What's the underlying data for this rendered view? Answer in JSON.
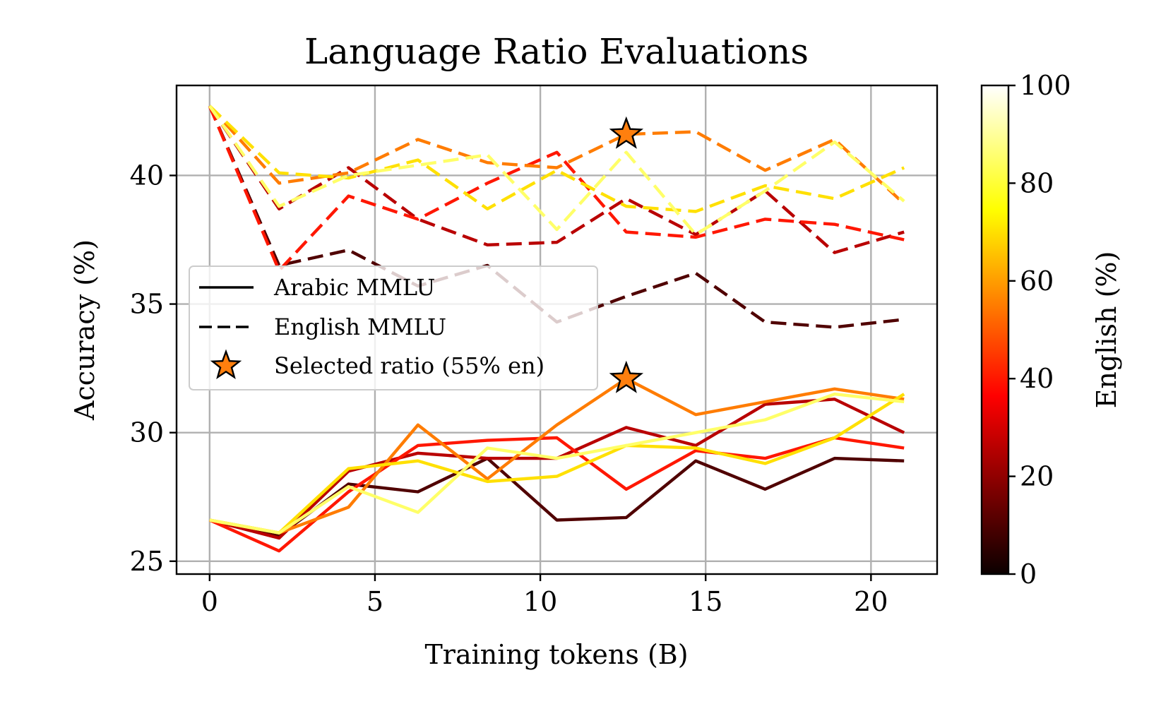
{
  "chart_data": {
    "type": "line",
    "title": "Language Ratio Evaluations",
    "xlabel": "Training tokens (B)",
    "ylabel": "Accuracy (%)",
    "xlim": [
      -1,
      22
    ],
    "ylim": [
      24.5,
      43.5
    ],
    "xticks": [
      0,
      5,
      10,
      15,
      20
    ],
    "yticks": [
      25,
      30,
      35,
      40
    ],
    "grid": true,
    "legend_position": "center-left",
    "legend": [
      {
        "label": "Arabic MMLU",
        "style": "solid"
      },
      {
        "label": "English MMLU",
        "style": "dashed"
      },
      {
        "label": "Selected ratio (55% en)",
        "style": "star",
        "color": "#ff7f0e"
      }
    ],
    "colorbar": {
      "label": "English (%)",
      "ticks": [
        0,
        20,
        40,
        60,
        80,
        100
      ],
      "colormap": "hot"
    },
    "x": [
      0,
      2.1,
      4.2,
      6.3,
      8.4,
      10.5,
      12.6,
      14.7,
      16.8,
      18.9,
      21
    ],
    "series": [
      {
        "metric": "Arabic MMLU",
        "english_pct": 10,
        "values": [
          26.6,
          26.0,
          28.0,
          27.7,
          29.0,
          26.6,
          26.7,
          28.9,
          27.8,
          29.0,
          28.9
        ]
      },
      {
        "metric": "Arabic MMLU",
        "english_pct": 25,
        "values": [
          26.6,
          25.9,
          28.5,
          29.2,
          29.0,
          29.0,
          30.2,
          29.5,
          31.1,
          31.3,
          30.0
        ]
      },
      {
        "metric": "Arabic MMLU",
        "english_pct": 40,
        "values": [
          26.6,
          25.4,
          27.7,
          29.5,
          29.7,
          29.8,
          27.8,
          29.3,
          29.0,
          29.8,
          29.4
        ]
      },
      {
        "metric": "Arabic MMLU",
        "english_pct": 55,
        "values": [
          26.6,
          26.1,
          27.1,
          30.3,
          28.2,
          30.3,
          32.1,
          30.7,
          31.2,
          31.7,
          31.3
        ]
      },
      {
        "metric": "Arabic MMLU",
        "english_pct": 70,
        "values": [
          26.6,
          26.1,
          28.6,
          28.9,
          28.1,
          28.3,
          29.5,
          29.4,
          28.8,
          29.8,
          31.5
        ]
      },
      {
        "metric": "Arabic MMLU",
        "english_pct": 85,
        "values": [
          26.6,
          26.1,
          27.9,
          26.9,
          29.4,
          29.0,
          29.5,
          30.0,
          30.5,
          31.5,
          31.2
        ]
      },
      {
        "metric": "English MMLU",
        "english_pct": 10,
        "values": [
          42.7,
          36.5,
          37.1,
          35.7,
          36.5,
          34.3,
          35.3,
          36.2,
          34.3,
          34.1,
          34.4
        ]
      },
      {
        "metric": "English MMLU",
        "english_pct": 25,
        "values": [
          42.7,
          38.7,
          40.3,
          38.3,
          37.3,
          37.4,
          39.1,
          37.7,
          39.4,
          37.0,
          37.8
        ]
      },
      {
        "metric": "English MMLU",
        "english_pct": 40,
        "values": [
          42.7,
          36.3,
          39.2,
          38.3,
          39.7,
          40.9,
          37.8,
          37.6,
          38.3,
          38.1,
          37.5
        ]
      },
      {
        "metric": "English MMLU",
        "english_pct": 55,
        "values": [
          42.7,
          39.7,
          40.1,
          41.4,
          40.5,
          40.3,
          41.6,
          41.7,
          40.2,
          41.4,
          38.9
        ]
      },
      {
        "metric": "English MMLU",
        "english_pct": 70,
        "values": [
          42.7,
          40.1,
          39.9,
          40.6,
          38.7,
          40.2,
          38.8,
          38.6,
          39.6,
          39.1,
          40.3
        ]
      },
      {
        "metric": "English MMLU",
        "english_pct": 85,
        "values": [
          42.7,
          38.8,
          40.0,
          40.4,
          40.8,
          37.9,
          40.9,
          37.7,
          39.4,
          41.3,
          39.0
        ]
      }
    ],
    "selected_points": [
      {
        "x": 12.6,
        "y": 41.6,
        "metric": "English MMLU"
      },
      {
        "x": 12.6,
        "y": 32.1,
        "metric": "Arabic MMLU"
      }
    ]
  }
}
